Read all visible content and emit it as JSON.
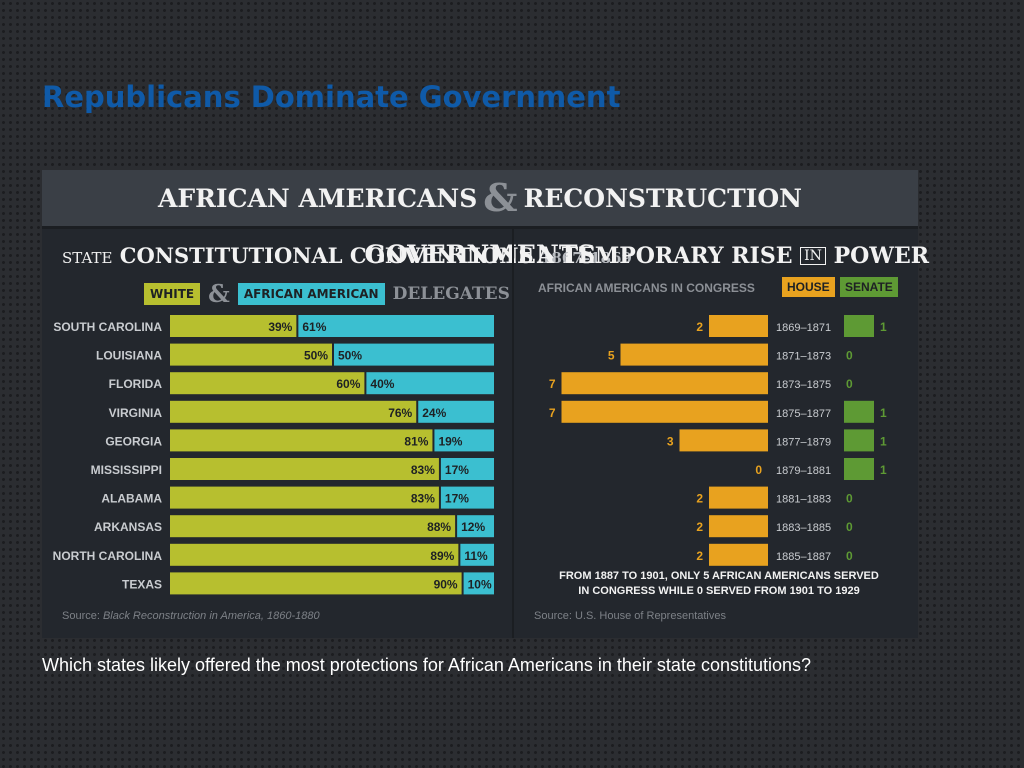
{
  "slide": {
    "title": "Republicans Dominate Government",
    "question": "Which states likely offered the most protections for African Americans in their state constitutions?"
  },
  "infographic": {
    "header_left": "AFRICAN AMERICANS",
    "header_amp": "&",
    "header_right": "RECONSTRUCTION GOVERNMENTS"
  },
  "colors": {
    "white_bar": "#b7bf2f",
    "african_american_bar": "#3bbfd0",
    "house_bar": "#e8a21f",
    "senate_bar": "#5e9a34"
  },
  "chart_data": [
    {
      "type": "bar",
      "orientation": "horizontal-stacked-100",
      "title_prefix": "STATE",
      "title": "CONSTITUTIONAL CONVENTIONS",
      "years": "1867–1869",
      "legend": {
        "white": "WHITE",
        "amp": "&",
        "african_american": "AFRICAN AMERICAN",
        "suffix": "DELEGATES"
      },
      "categories": [
        "SOUTH CAROLINA",
        "LOUISIANA",
        "FLORIDA",
        "VIRGINIA",
        "GEORGIA",
        "MISSISSIPPI",
        "ALABAMA",
        "ARKANSAS",
        "NORTH CAROLINA",
        "TEXAS"
      ],
      "series": [
        {
          "name": "WHITE",
          "values": [
            39,
            50,
            60,
            76,
            81,
            83,
            83,
            88,
            89,
            90
          ]
        },
        {
          "name": "AFRICAN AMERICAN",
          "values": [
            61,
            50,
            40,
            24,
            19,
            17,
            17,
            12,
            11,
            10
          ]
        }
      ],
      "unit": "%",
      "source_label": "Source: ",
      "source_title": "Black Reconstruction in America, 1860-1880"
    },
    {
      "type": "bar",
      "orientation": "horizontal-butterfly",
      "title_a": "A TEMPORARY RISE",
      "title_in": "IN",
      "title_b": "POWER",
      "subtitle": "AFRICAN AMERICANS IN CONGRESS",
      "categories": [
        "1869–1871",
        "1871–1873",
        "1873–1875",
        "1875–1877",
        "1877–1879",
        "1879–1881",
        "1881–1883",
        "1883–1885",
        "1885–1887"
      ],
      "series": [
        {
          "name": "HOUSE",
          "values": [
            2,
            5,
            7,
            7,
            3,
            0,
            2,
            2,
            2
          ]
        },
        {
          "name": "SENATE",
          "values": [
            1,
            0,
            0,
            1,
            1,
            1,
            0,
            0,
            0
          ]
        }
      ],
      "footnote_line1": "FROM 1887 TO 1901, ONLY 5 AFRICAN AMERICANS SERVED",
      "footnote_line2": "IN CONGRESS WHILE 0 SERVED FROM 1901 TO 1929",
      "source": "Source: U.S. House of Representatives"
    }
  ]
}
